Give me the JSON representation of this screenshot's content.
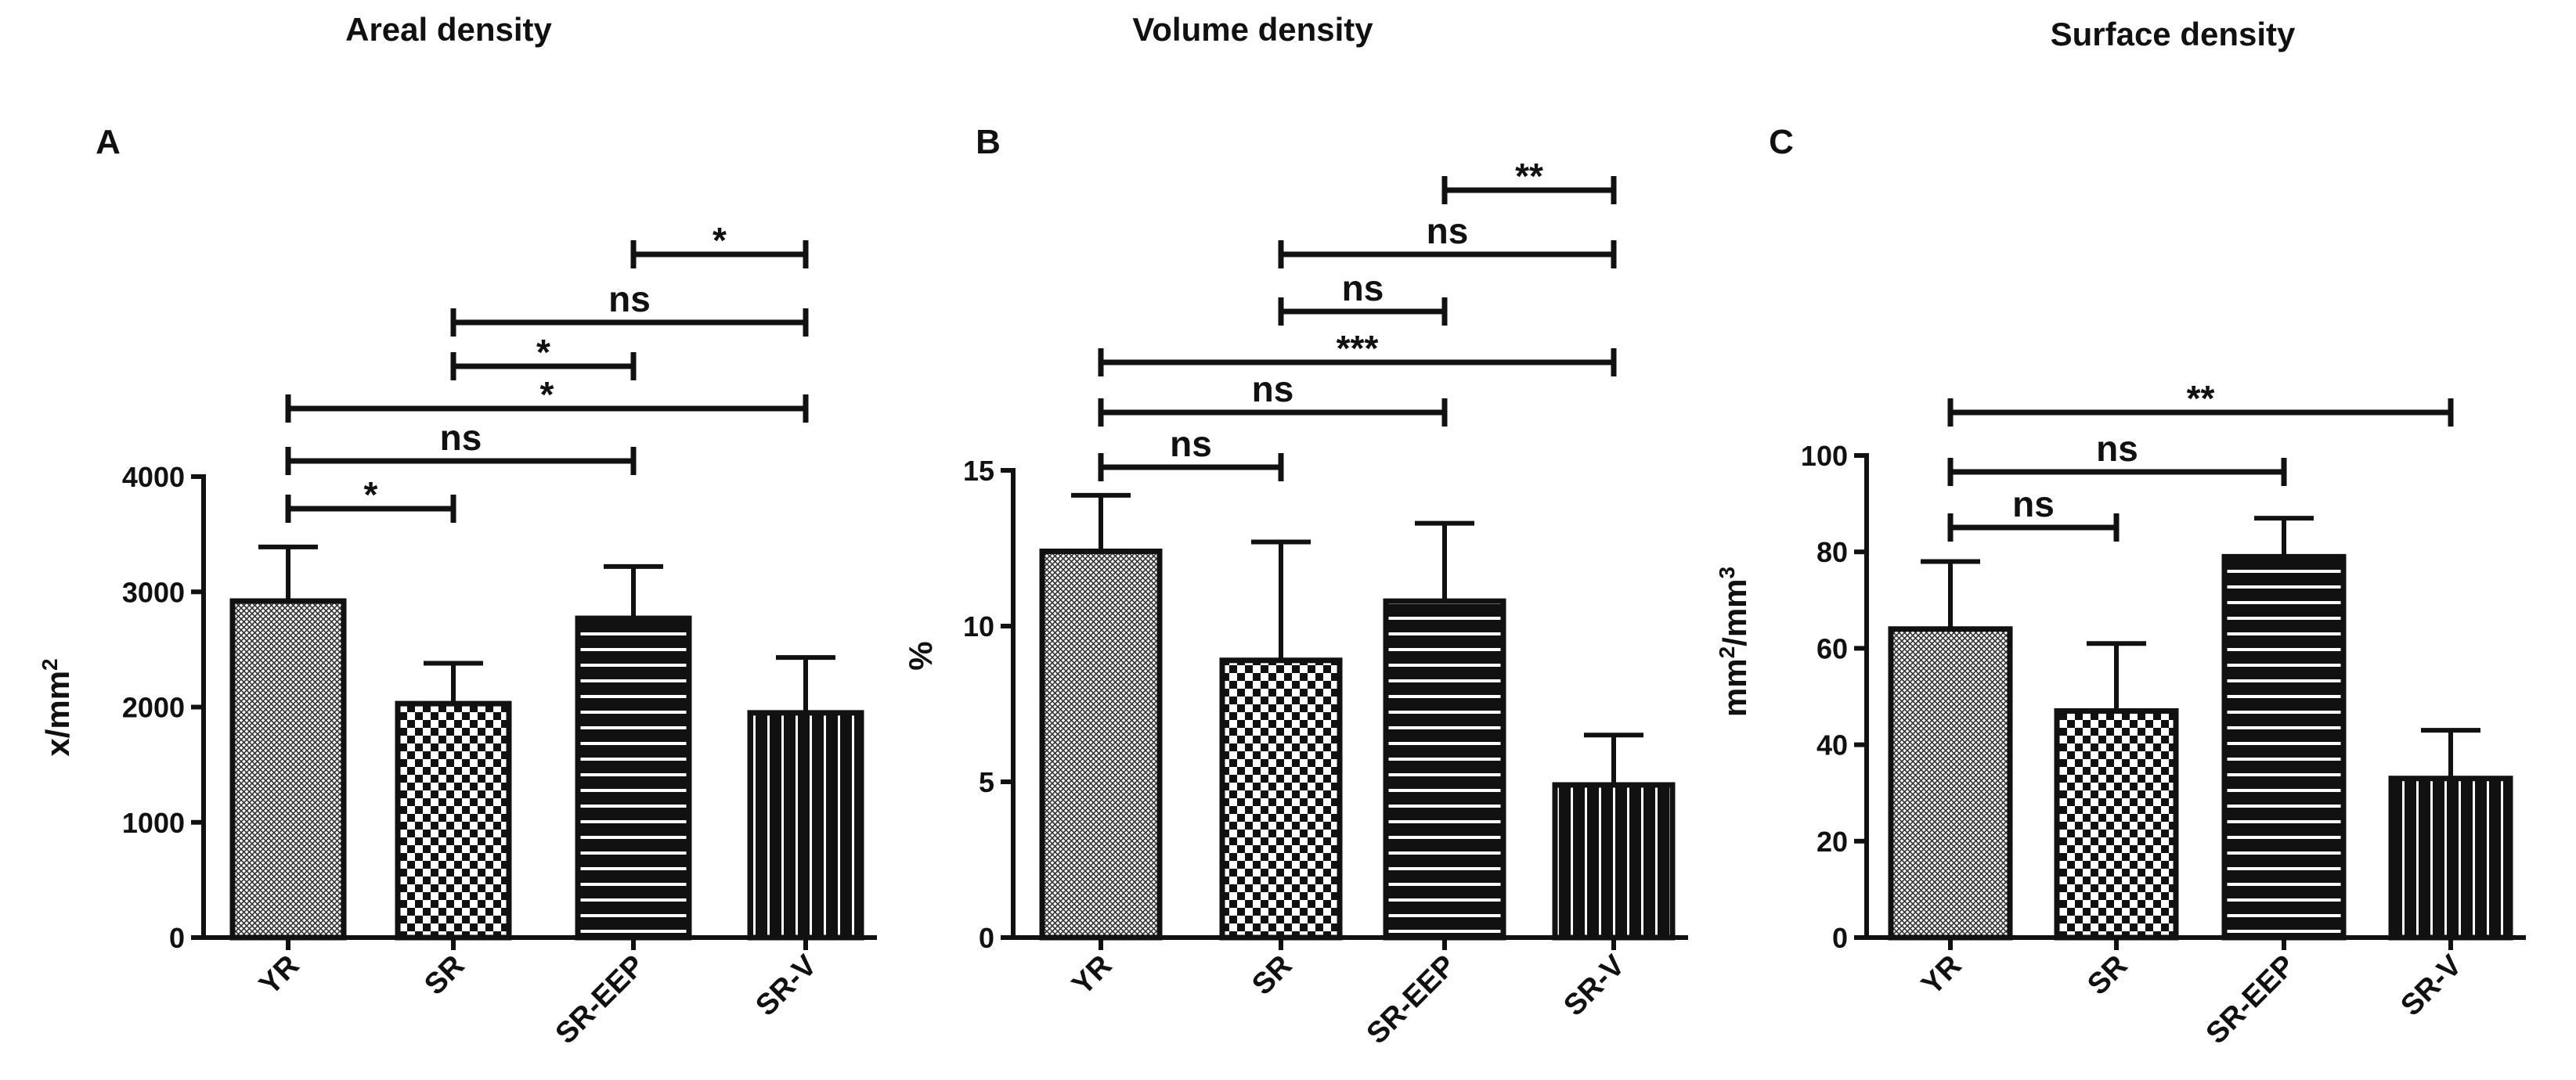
{
  "chart_data": [
    {
      "type": "bar",
      "panel": "A",
      "title": "Areal density",
      "ylabel": "x/mm2",
      "ylabel_main": "x/mm",
      "ylabel_sup": "2",
      "categories": [
        "YR",
        "SR",
        "SR-EEP",
        "SR-V"
      ],
      "values": [
        2920,
        2030,
        2770,
        1950
      ],
      "errors": [
        470,
        350,
        450,
        480
      ],
      "ylim": [
        0,
        4000
      ],
      "yticks": [
        0,
        1000,
        2000,
        3000,
        4000
      ],
      "comparisons": [
        {
          "from": "YR",
          "to": "SR",
          "label": "*"
        },
        {
          "from": "YR",
          "to": "SR-EEP",
          "label": "ns"
        },
        {
          "from": "YR",
          "to": "SR-V",
          "label": "*"
        },
        {
          "from": "SR",
          "to": "SR-EEP",
          "label": "*"
        },
        {
          "from": "SR",
          "to": "SR-V",
          "label": "ns"
        },
        {
          "from": "SR-EEP",
          "to": "SR-V",
          "label": "*"
        }
      ]
    },
    {
      "type": "bar",
      "panel": "B",
      "title": "Volume density",
      "ylabel": "%",
      "ylabel_main": "%",
      "ylabel_sup": "",
      "categories": [
        "YR",
        "SR",
        "SR-EEP",
        "SR-V"
      ],
      "values": [
        12.4,
        8.9,
        10.8,
        4.9
      ],
      "errors": [
        1.8,
        3.8,
        2.5,
        1.6
      ],
      "ylim": [
        0,
        15
      ],
      "yticks": [
        0,
        5,
        10,
        15
      ],
      "comparisons": [
        {
          "from": "YR",
          "to": "SR",
          "label": "ns"
        },
        {
          "from": "YR",
          "to": "SR-EEP",
          "label": "ns"
        },
        {
          "from": "YR",
          "to": "SR-V",
          "label": "***"
        },
        {
          "from": "SR",
          "to": "SR-EEP",
          "label": "ns"
        },
        {
          "from": "SR",
          "to": "SR-V",
          "label": "ns"
        },
        {
          "from": "SR-EEP",
          "to": "SR-V",
          "label": "**"
        }
      ]
    },
    {
      "type": "bar",
      "panel": "C",
      "title": "Surface density",
      "ylabel": "mm2/mm3",
      "ylabel_main": "mm",
      "ylabel_sup": "2",
      "ylabel_main2": "/mm",
      "ylabel_sup2": "3",
      "categories": [
        "YR",
        "SR",
        "SR-EEP",
        "SR-V"
      ],
      "values": [
        64,
        47,
        79,
        33
      ],
      "errors": [
        14,
        14,
        8,
        10
      ],
      "ylim": [
        0,
        100
      ],
      "yticks": [
        0,
        20,
        40,
        60,
        80,
        100
      ],
      "comparisons": [
        {
          "from": "YR",
          "to": "SR",
          "label": "ns"
        },
        {
          "from": "YR",
          "to": "SR-EEP",
          "label": "ns"
        },
        {
          "from": "YR",
          "to": "SR-V",
          "label": "**"
        }
      ]
    }
  ],
  "colors": {
    "ink": "#111111",
    "background": "#ffffff"
  }
}
